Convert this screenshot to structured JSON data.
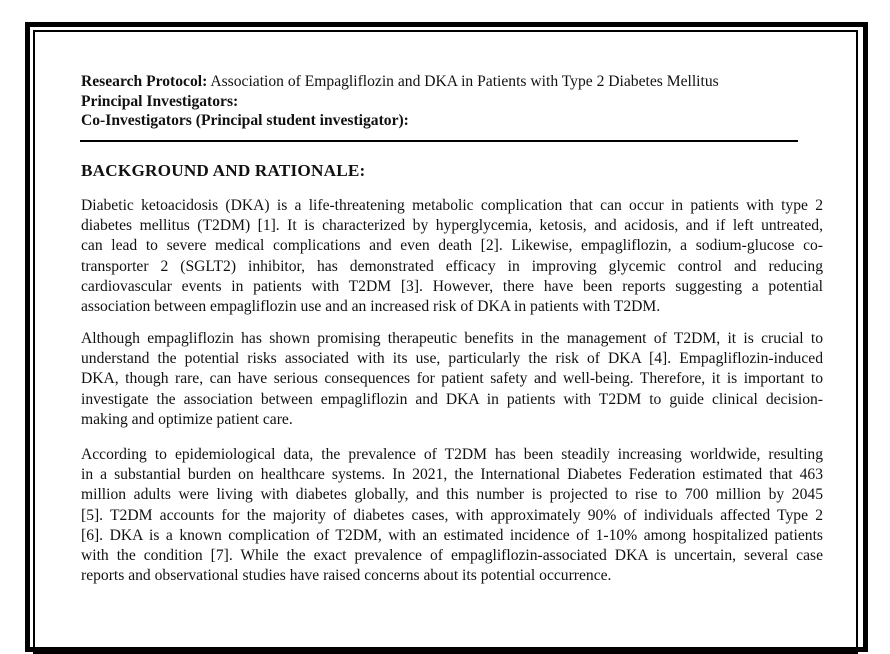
{
  "header": {
    "protocol_label": "Research Protocol:",
    "protocol_title": " Association of Empagliflozin and DKA in Patients with Type 2 Diabetes Mellitus",
    "pi_label": "Principal Investigators:",
    "coi_label": "Co-Investigators (Principal student investigator):"
  },
  "section": {
    "heading": "BACKGROUND AND RATIONALE:",
    "paragraphs": [
      [
        "Diabetic ketoacidosis (DKA) is a life-threatening metabolic complication that can occur in patients with type 2",
        "diabetes mellitus (T2DM) [1]. It is characterized by hyperglycemia, ketosis, and acidosis, and if left untreated,",
        "can lead to severe medical complications and even death [2]. Likewise, empagliflozin, a sodium-glucose co-",
        "transporter 2 (SGLT2) inhibitor, has demonstrated efficacy in improving glycemic control and reducing",
        "cardiovascular events in patients with T2DM [3]. However, there have been reports suggesting a potential",
        "association between empagliflozin use and an increased risk of DKA in patients with T2DM."
      ],
      [
        "Although empagliflozin has shown promising therapeutic benefits in the management of T2DM, it is crucial to",
        "understand the potential risks associated with its use, particularly the risk of DKA [4]. Empagliflozin-induced",
        "DKA, though rare, can have serious consequences for patient safety and well-being. Therefore, it is important to",
        "investigate the association between empagliflozin and DKA in patients with T2DM to guide clinical decision-",
        "making and optimize patient care."
      ],
      [
        "According to epidemiological data, the prevalence of T2DM has been steadily increasing worldwide, resulting",
        "in a substantial burden on healthcare systems. In 2021, the International Diabetes Federation estimated that 463",
        "million adults were living with diabetes globally, and this number is projected to rise to 700 million by 2045",
        "[5]. T2DM accounts for the majority of diabetes cases, with approximately 90% of individuals affected Type 2",
        "[6]. DKA is a known complication of T2DM, with an estimated incidence of 1-10% among hospitalized patients",
        "with the condition [7]. While the exact prevalence of empagliflozin-associated DKA is uncertain, several case",
        "reports and observational studies have raised concerns about its potential occurrence."
      ]
    ]
  }
}
